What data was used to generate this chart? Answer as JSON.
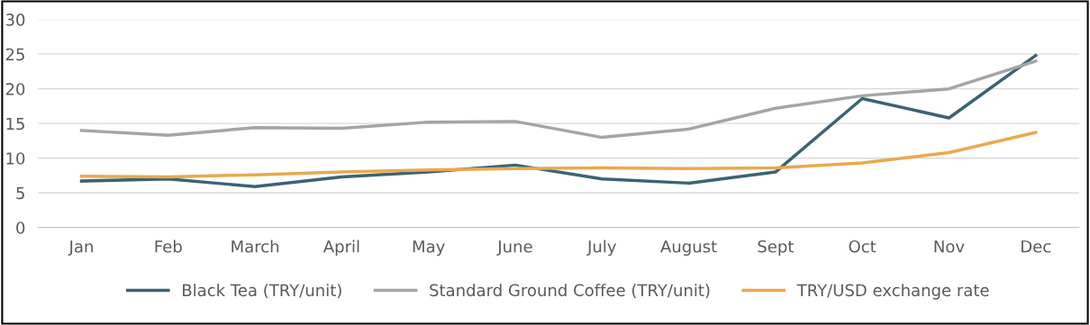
{
  "chart_data": {
    "type": "line",
    "categories": [
      "Jan",
      "Feb",
      "March",
      "April",
      "May",
      "June",
      "July",
      "August",
      "Sept",
      "Oct",
      "Nov",
      "Dec"
    ],
    "series": [
      {
        "name": "Black Tea (TRY/unit)",
        "color": "#3c6373",
        "values": [
          6.7,
          7.0,
          5.9,
          7.3,
          8.0,
          9.0,
          7.0,
          6.4,
          8.0,
          18.6,
          15.8,
          24.8
        ]
      },
      {
        "name": "Standard Ground Coffee (TRY/unit)",
        "color": "#a5a5a5",
        "values": [
          14.0,
          13.3,
          14.4,
          14.3,
          15.2,
          15.3,
          13.0,
          14.2,
          17.2,
          19.0,
          20.0,
          24.0
        ]
      },
      {
        "name": "TRY/USD exchange rate",
        "color": "#e9a94e",
        "values": [
          7.4,
          7.3,
          7.6,
          8.0,
          8.3,
          8.5,
          8.6,
          8.5,
          8.6,
          9.3,
          10.8,
          13.7
        ]
      }
    ],
    "ylim": [
      0,
      30
    ],
    "yticks": [
      0,
      5,
      10,
      15,
      20,
      25,
      30
    ],
    "grid": "y",
    "legend": "bottom",
    "marker": "none",
    "line_style": "solid"
  }
}
